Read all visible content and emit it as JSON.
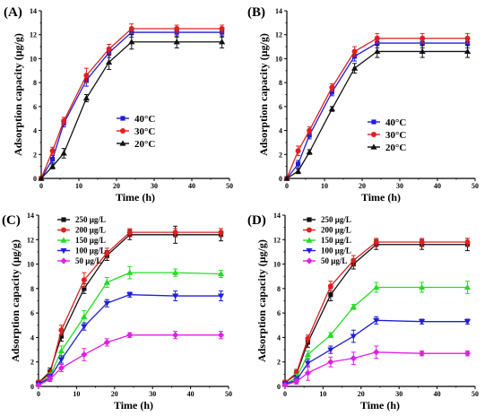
{
  "chart_data": [
    {
      "panel": "(A)",
      "type": "line",
      "xlabel": "Time (h)",
      "ylabel": "Adsorption capacity (μg/g)",
      "xlim": [
        0,
        50
      ],
      "ylim": [
        0,
        14
      ],
      "xticks": [
        "0",
        "10",
        "20",
        "30",
        "40",
        "50"
      ],
      "yticks": [
        "0",
        "2",
        "4",
        "6",
        "8",
        "10",
        "12",
        "14"
      ],
      "legend_position": "middle-right",
      "x": [
        0,
        3,
        6,
        12,
        18,
        24,
        36,
        48
      ],
      "series": [
        {
          "name": "40°C",
          "color": "#1f1fd6",
          "marker": "square",
          "values": [
            0,
            1.6,
            4.6,
            8.2,
            10.5,
            12.2,
            12.2,
            12.2
          ],
          "errors": [
            0,
            0.3,
            0.3,
            0.5,
            0.4,
            0.4,
            0.4,
            0.4
          ]
        },
        {
          "name": "30°C",
          "color": "#e02020",
          "marker": "circle",
          "values": [
            0,
            2.3,
            4.8,
            8.6,
            10.8,
            12.5,
            12.5,
            12.5
          ],
          "errors": [
            0,
            0.3,
            0.3,
            0.6,
            0.4,
            0.4,
            0.3,
            0.3
          ]
        },
        {
          "name": "20°C",
          "color": "#111111",
          "marker": "triangle",
          "values": [
            0,
            1.0,
            2.1,
            6.7,
            9.7,
            11.4,
            11.4,
            11.4
          ],
          "errors": [
            0,
            0.2,
            0.4,
            0.3,
            0.6,
            0.6,
            0.5,
            0.5
          ]
        }
      ]
    },
    {
      "panel": "(B)",
      "type": "line",
      "xlabel": "Time (h)",
      "ylabel": "Adsorption capacity (μg/g)",
      "xlim": [
        0,
        50
      ],
      "ylim": [
        0,
        14
      ],
      "xticks": [
        "0",
        "10",
        "20",
        "30",
        "40",
        "50"
      ],
      "yticks": [
        "0",
        "2",
        "4",
        "6",
        "8",
        "10",
        "12",
        "14"
      ],
      "legend_position": "middle-right",
      "x": [
        0,
        3,
        6,
        12,
        18,
        24,
        36,
        48
      ],
      "series": [
        {
          "name": "40°C",
          "color": "#1f1fd6",
          "marker": "square",
          "values": [
            0,
            1.2,
            3.6,
            7.2,
            10.2,
            11.3,
            11.3,
            11.3
          ],
          "errors": [
            0,
            0.3,
            0.3,
            0.3,
            0.4,
            0.4,
            0.4,
            0.4
          ]
        },
        {
          "name": "30°C",
          "color": "#e02020",
          "marker": "circle",
          "values": [
            0,
            2.3,
            4.0,
            7.6,
            10.6,
            11.7,
            11.7,
            11.7
          ],
          "errors": [
            0,
            0.4,
            0.3,
            0.3,
            0.4,
            0.4,
            0.4,
            0.4
          ]
        },
        {
          "name": "20°C",
          "color": "#111111",
          "marker": "triangle",
          "values": [
            0,
            0.6,
            2.2,
            5.8,
            9.2,
            10.6,
            10.6,
            10.6
          ],
          "errors": [
            0,
            0.2,
            0.2,
            0.2,
            0.4,
            0.5,
            0.5,
            0.5
          ]
        }
      ]
    },
    {
      "panel": "(C)",
      "type": "line",
      "xlabel": "Time (h)",
      "ylabel": "Adsorption capacity (μg/g)",
      "xlim": [
        0,
        50
      ],
      "ylim": [
        0,
        14
      ],
      "xticks": [
        "0",
        "10",
        "20",
        "30",
        "40",
        "50"
      ],
      "yticks": [
        "0",
        "2",
        "4",
        "6",
        "8",
        "10",
        "12",
        "14"
      ],
      "legend_position": "top-left",
      "x": [
        0,
        3,
        6,
        12,
        18,
        24,
        36,
        48
      ],
      "series": [
        {
          "name": "250 μg/L",
          "color": "#111111",
          "marker": "square",
          "values": [
            0.3,
            1.2,
            4.1,
            8.0,
            10.7,
            12.4,
            12.4,
            12.4
          ],
          "errors": [
            0.2,
            0.3,
            0.4,
            0.4,
            0.4,
            0.4,
            0.7,
            0.5
          ]
        },
        {
          "name": "200 μg/L",
          "color": "#e02020",
          "marker": "circle",
          "values": [
            0.3,
            1.0,
            4.6,
            8.7,
            10.9,
            12.6,
            12.6,
            12.6
          ],
          "errors": [
            0.2,
            0.3,
            0.4,
            0.6,
            0.4,
            0.3,
            0.3,
            0.3
          ]
        },
        {
          "name": "150 μg/L",
          "color": "#22dd22",
          "marker": "triangle",
          "values": [
            0.2,
            0.8,
            2.9,
            5.7,
            8.5,
            9.3,
            9.3,
            9.2
          ],
          "errors": [
            0.2,
            0.3,
            0.4,
            0.5,
            0.4,
            0.5,
            0.3,
            0.3
          ]
        },
        {
          "name": "100 μg/L",
          "color": "#1f1fd6",
          "marker": "triangle-down",
          "values": [
            0.2,
            0.7,
            2.2,
            4.9,
            6.8,
            7.5,
            7.4,
            7.4
          ],
          "errors": [
            0.2,
            0.3,
            0.3,
            0.3,
            0.3,
            0.2,
            0.4,
            0.4
          ]
        },
        {
          "name": "50 μg/L",
          "color": "#e020e0",
          "marker": "diamond",
          "values": [
            0.1,
            0.6,
            1.5,
            2.6,
            3.6,
            4.2,
            4.2,
            4.2
          ],
          "errors": [
            0.1,
            0.2,
            0.3,
            0.5,
            0.3,
            0.2,
            0.3,
            0.3
          ]
        }
      ]
    },
    {
      "panel": "(D)",
      "type": "line",
      "xlabel": "Time (h)",
      "ylabel": "Adsorption capacity (μg/g)",
      "xlim": [
        0,
        50
      ],
      "ylim": [
        0,
        14
      ],
      "xticks": [
        "0",
        "10",
        "20",
        "30",
        "40",
        "50"
      ],
      "yticks": [
        "0",
        "2",
        "4",
        "6",
        "8",
        "10",
        "12",
        "14"
      ],
      "legend_position": "top-left",
      "x": [
        0,
        3,
        6,
        12,
        18,
        24,
        36,
        48
      ],
      "series": [
        {
          "name": "250 μg/L",
          "color": "#111111",
          "marker": "square",
          "values": [
            0.3,
            1.0,
            3.6,
            7.5,
            10.0,
            11.6,
            11.6,
            11.6
          ],
          "errors": [
            0.2,
            0.3,
            0.4,
            0.5,
            0.4,
            0.4,
            0.4,
            0.5
          ]
        },
        {
          "name": "200 μg/L",
          "color": "#e02020",
          "marker": "circle",
          "values": [
            0.3,
            1.1,
            3.9,
            8.2,
            10.3,
            11.8,
            11.8,
            11.8
          ],
          "errors": [
            0.2,
            0.3,
            0.3,
            0.4,
            0.4,
            0.3,
            0.3,
            0.3
          ]
        },
        {
          "name": "150 μg/L",
          "color": "#22dd22",
          "marker": "triangle",
          "values": [
            0.2,
            0.7,
            2.6,
            4.2,
            6.5,
            8.1,
            8.1,
            8.1
          ],
          "errors": [
            0.2,
            0.3,
            0.3,
            0.2,
            0.2,
            0.4,
            0.4,
            0.5
          ]
        },
        {
          "name": "100 μg/L",
          "color": "#1f1fd6",
          "marker": "triangle-down",
          "values": [
            0.2,
            0.5,
            1.9,
            3.0,
            4.1,
            5.4,
            5.3,
            5.3
          ],
          "errors": [
            0.2,
            0.3,
            0.3,
            0.3,
            0.5,
            0.3,
            0.2,
            0.2
          ]
        },
        {
          "name": "50 μg/L",
          "color": "#e020e0",
          "marker": "diamond",
          "values": [
            0.1,
            0.4,
            1.1,
            2.0,
            2.3,
            2.8,
            2.7,
            2.7
          ],
          "errors": [
            0.1,
            0.2,
            0.6,
            0.4,
            0.5,
            0.5,
            0.2,
            0.2
          ]
        }
      ]
    }
  ]
}
